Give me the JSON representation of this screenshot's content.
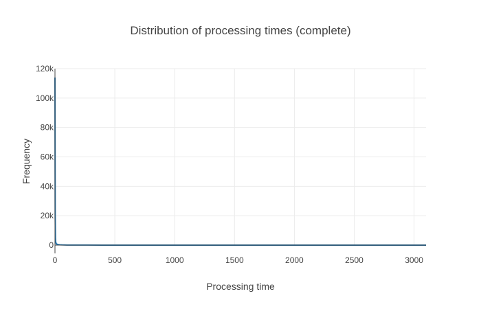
{
  "chart_data": {
    "type": "line",
    "title": "Distribution of processing times (complete)",
    "xlabel": "Processing time",
    "ylabel": "Frequency",
    "xlim": [
      0,
      3100
    ],
    "ylim": [
      0,
      120000
    ],
    "x_ticks": [
      0,
      500,
      1000,
      1500,
      2000,
      2500,
      3000
    ],
    "x_tick_labels": [
      "0",
      "500",
      "1000",
      "1500",
      "2000",
      "2500",
      "3000"
    ],
    "y_ticks": [
      0,
      20000,
      40000,
      60000,
      80000,
      100000,
      120000
    ],
    "y_tick_labels": [
      "0",
      "20k",
      "40k",
      "60k",
      "80k",
      "100k",
      "120k"
    ],
    "grid": true,
    "legend": "none",
    "series": [
      {
        "color": "#1f77b4",
        "x": [
          0,
          1,
          2,
          4,
          6,
          10,
          15,
          25,
          40,
          60,
          100,
          200,
          400,
          800,
          1600,
          3100
        ],
        "y": [
          114000,
          62000,
          20000,
          5000,
          2200,
          1100,
          700,
          400,
          250,
          150,
          80,
          40,
          20,
          10,
          5,
          2
        ]
      }
    ]
  }
}
